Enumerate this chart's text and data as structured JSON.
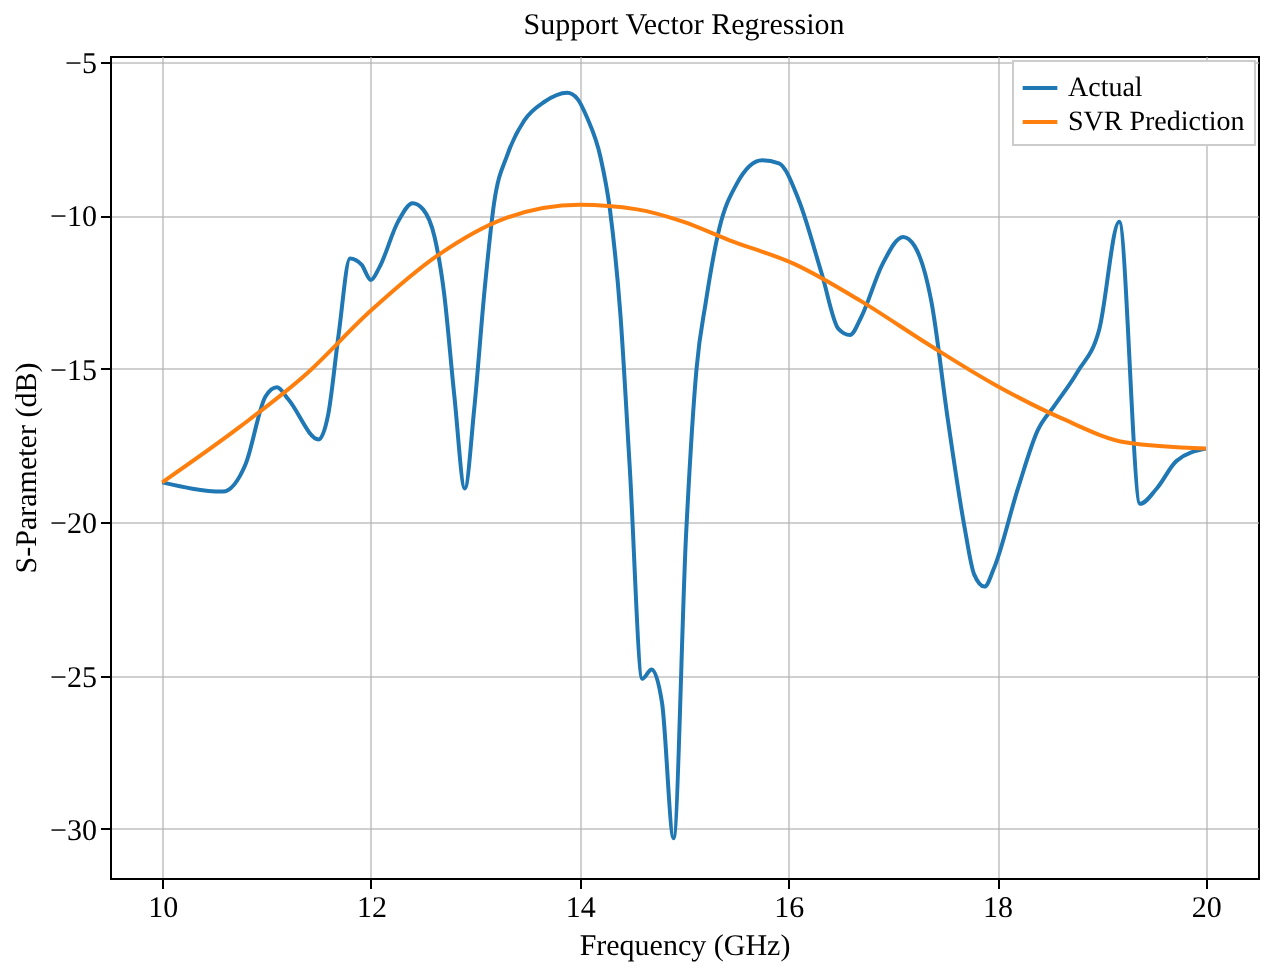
{
  "chart_data": {
    "type": "line",
    "title": "Support Vector Regression",
    "xlabel": "Frequency (GHz)",
    "ylabel": "S-Parameter (dB)",
    "xlim": [
      9.5,
      20.5
    ],
    "xticks": [
      10,
      12,
      14,
      16,
      18,
      20
    ],
    "ylim": [
      -31.6,
      -4.8
    ],
    "yticks": [
      -30,
      -25,
      -20,
      -15,
      -10,
      -5
    ],
    "grid": true,
    "legend": "top right",
    "marker": "none",
    "line_style": "solid",
    "series": [
      {
        "name": "Actual",
        "color": "#1f77b4",
        "x": [
          10,
          10.58,
          10.8,
          10.99,
          11.1,
          11.21,
          11.5,
          11.59,
          11.69,
          11.8,
          11.91,
          12.0,
          12.08,
          12.26,
          12.4,
          12.5,
          12.61,
          12.7,
          12.8,
          12.9,
          12.99,
          13.09,
          13.18,
          13.31,
          13.47,
          13.66,
          13.88,
          13.98,
          14.07,
          14.2,
          14.29,
          14.39,
          14.48,
          14.6,
          14.69,
          14.79,
          14.9,
          15.02,
          15.12,
          15.21,
          15.34,
          15.5,
          15.75,
          15.91,
          16.1,
          16.32,
          16.48,
          16.59,
          16.7,
          16.9,
          17.1,
          17.21,
          17.37,
          17.53,
          17.69,
          17.78,
          17.88,
          17.97,
          18.2,
          18.39,
          18.55,
          18.77,
          18.98,
          19.17,
          19.37,
          19.53,
          19.72,
          20.0
        ],
        "values": [
          -18.7,
          -19.0,
          -18.1,
          -15.9,
          -15.6,
          -16.0,
          -17.3,
          -16.5,
          -13.9,
          -11.4,
          -11.6,
          -12.1,
          -11.7,
          -10.2,
          -9.6,
          -9.8,
          -10.7,
          -12.5,
          -15.9,
          -18.9,
          -16.3,
          -12.4,
          -9.6,
          -8.0,
          -6.9,
          -6.3,
          -6.0,
          -6.2,
          -6.8,
          -8.1,
          -9.8,
          -13.2,
          -18.2,
          -25.1,
          -24.8,
          -25.9,
          -30.3,
          -20.4,
          -15.0,
          -12.8,
          -10.4,
          -9.0,
          -8.2,
          -8.3,
          -9.5,
          -11.9,
          -13.7,
          -13.9,
          -13.3,
          -11.6,
          -10.7,
          -11.0,
          -12.8,
          -16.7,
          -20.2,
          -21.7,
          -22.1,
          -21.5,
          -18.9,
          -17.0,
          -16.2,
          -15.1,
          -13.7,
          -10.2,
          -19.4,
          -18.9,
          -18.0,
          -17.6
        ]
      },
      {
        "name": "SVR Prediction",
        "color": "#ff7f0e",
        "x": [
          10,
          10.74,
          11.37,
          12.0,
          12.64,
          13.28,
          14.0,
          14.55,
          14.99,
          15.43,
          16.07,
          16.7,
          17.34,
          17.97,
          18.61,
          19.24,
          20.0
        ],
        "values": [
          -18.7,
          -16.9,
          -15.2,
          -13.1,
          -11.3,
          -10.1,
          -9.65,
          -9.8,
          -10.2,
          -10.8,
          -11.6,
          -12.8,
          -14.2,
          -15.5,
          -16.6,
          -17.4,
          -17.6
        ]
      }
    ]
  }
}
